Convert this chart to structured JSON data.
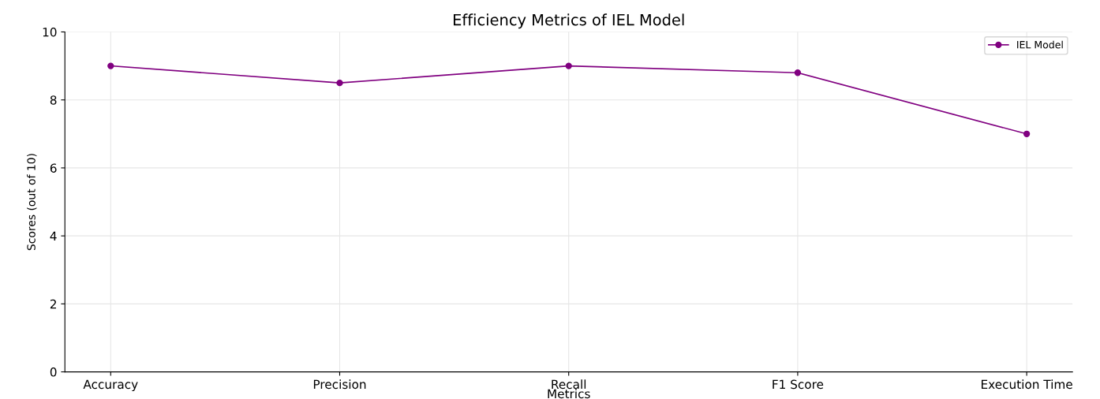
{
  "chart_data": {
    "type": "line",
    "title": "Efficiency Metrics of IEL Model",
    "xlabel": "Metrics",
    "ylabel": "Scores (out of 10)",
    "categories": [
      "Accuracy",
      "Precision",
      "Recall",
      "F1 Score",
      "Execution Time"
    ],
    "series": [
      {
        "name": "IEL Model",
        "color": "#800080",
        "values": [
          9,
          8.5,
          9,
          8.8,
          7
        ]
      }
    ],
    "ylim": [
      0,
      10
    ],
    "yticks": [
      0,
      2,
      4,
      6,
      8,
      10
    ],
    "grid": true,
    "legend": "top right",
    "marker": "circle",
    "line_style": "solid"
  }
}
